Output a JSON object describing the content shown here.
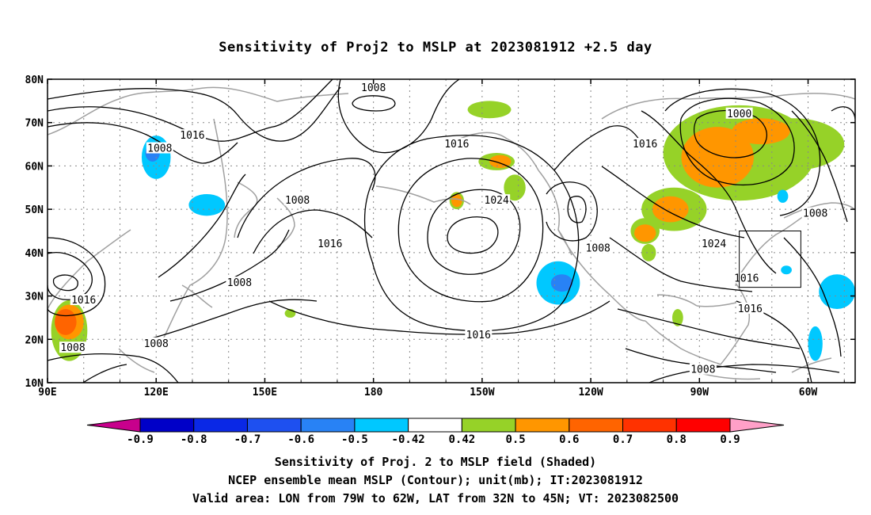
{
  "title": "Sensitivity of Proj2 to MSLP at 2023081912 +2.5 day",
  "axes": {
    "lat_labels": [
      "80N",
      "70N",
      "60N",
      "50N",
      "40N",
      "30N",
      "20N",
      "10N"
    ],
    "lon_labels": [
      "90E",
      "120E",
      "150E",
      "180",
      "150W",
      "120W",
      "90W",
      "60W"
    ]
  },
  "contour_labels": [
    {
      "text": "1008",
      "lon": 180,
      "lat": 78
    },
    {
      "text": "1016",
      "lon": 130,
      "lat": 67
    },
    {
      "text": "1008",
      "lon": 121,
      "lat": 64
    },
    {
      "text": "1016",
      "lon": -157,
      "lat": 65
    },
    {
      "text": "1000",
      "lon": -79,
      "lat": 72
    },
    {
      "text": "1016",
      "lon": -105,
      "lat": 65
    },
    {
      "text": "1008",
      "lon": 159,
      "lat": 52
    },
    {
      "text": "1024",
      "lon": -146,
      "lat": 52
    },
    {
      "text": "1016",
      "lon": 168,
      "lat": 42
    },
    {
      "text": "1008",
      "lon": -118,
      "lat": 41
    },
    {
      "text": "1024",
      "lon": -86,
      "lat": 42
    },
    {
      "text": "1008",
      "lon": -58,
      "lat": 49
    },
    {
      "text": "1008",
      "lon": 143,
      "lat": 33
    },
    {
      "text": "1016",
      "lon": -77,
      "lat": 34
    },
    {
      "text": "1016",
      "lon": -76,
      "lat": 27
    },
    {
      "text": "1016",
      "lon": 100,
      "lat": 29
    },
    {
      "text": "1016",
      "lon": -151,
      "lat": 21
    },
    {
      "text": "1008",
      "lon": 97,
      "lat": 18
    },
    {
      "text": "1008",
      "lon": 120,
      "lat": 19
    },
    {
      "text": "1008",
      "lon": -89,
      "lat": 13
    }
  ],
  "sensitivity_patches": [
    {
      "level": 0.6,
      "lon": -85,
      "lat": 62,
      "rx": 10,
      "ry": 7
    },
    {
      "level": 0.6,
      "lon": -73,
      "lat": 68,
      "rx": 8,
      "ry": 3
    },
    {
      "level": 0.5,
      "lon": -79,
      "lat": 63,
      "rx": 21,
      "ry": 11
    },
    {
      "level": 0.5,
      "lon": -64,
      "lat": 65,
      "rx": 14,
      "ry": 6
    },
    {
      "level": 0.6,
      "lon": -98,
      "lat": 50,
      "rx": 5,
      "ry": 3
    },
    {
      "level": 0.5,
      "lon": -97,
      "lat": 50,
      "rx": 9,
      "ry": 5
    },
    {
      "level": 0.6,
      "lon": -105,
      "lat": 44.5,
      "rx": 3,
      "ry": 2
    },
    {
      "level": 0.5,
      "lon": -105,
      "lat": 45,
      "rx": 4,
      "ry": 3
    },
    {
      "level": 0.5,
      "lon": -104,
      "lat": 40,
      "rx": 2,
      "ry": 2
    },
    {
      "level": 0.5,
      "lon": -148,
      "lat": 73,
      "rx": 6,
      "ry": 2
    },
    {
      "level": 0.6,
      "lon": -145,
      "lat": 61,
      "rx": 3,
      "ry": 1.5
    },
    {
      "level": 0.5,
      "lon": -146,
      "lat": 61,
      "rx": 5,
      "ry": 2
    },
    {
      "level": 0.5,
      "lon": -141,
      "lat": 55,
      "rx": 3,
      "ry": 3
    },
    {
      "level": 0.6,
      "lon": -157,
      "lat": 52,
      "rx": 1.5,
      "ry": 1.5
    },
    {
      "level": 0.5,
      "lon": -157,
      "lat": 52,
      "rx": 2,
      "ry": 2
    },
    {
      "level": 0.5,
      "lon": -96,
      "lat": 25,
      "rx": 1.5,
      "ry": 2
    },
    {
      "level": 0.7,
      "lon": 95,
      "lat": 24,
      "rx": 3,
      "ry": 3
    },
    {
      "level": 0.6,
      "lon": 96,
      "lat": 24,
      "rx": 4,
      "ry": 4
    },
    {
      "level": 0.5,
      "lon": 96,
      "lat": 22,
      "rx": 5,
      "ry": 7
    },
    {
      "level": 0.5,
      "lon": 157,
      "lat": 26,
      "rx": 1.5,
      "ry": 1
    },
    {
      "level": -0.5,
      "lon": -129,
      "lat": 33,
      "rx": 6,
      "ry": 5
    },
    {
      "level": -0.6,
      "lon": -128,
      "lat": 33,
      "rx": 3,
      "ry": 2
    },
    {
      "level": -0.5,
      "lon": 120,
      "lat": 62,
      "rx": 4,
      "ry": 5
    },
    {
      "level": -0.6,
      "lon": 119,
      "lat": 63,
      "rx": 2,
      "ry": 2
    },
    {
      "level": -0.5,
      "lon": 134,
      "lat": 51,
      "rx": 5,
      "ry": 2.5
    },
    {
      "level": -0.5,
      "lon": -52,
      "lat": 31,
      "rx": 5,
      "ry": 4
    },
    {
      "level": -0.5,
      "lon": -67,
      "lat": 53,
      "rx": 1.5,
      "ry": 1.5
    },
    {
      "level": -0.5,
      "lon": -66,
      "lat": 36,
      "rx": 1.5,
      "ry": 1
    },
    {
      "level": -0.5,
      "lon": -58,
      "lat": 19,
      "rx": 2,
      "ry": 4
    }
  ],
  "valid_area": {
    "lon_min": -79,
    "lon_max": -62,
    "lat_min": 32,
    "lat_max": 45
  },
  "colorbar": {
    "labels": [
      "-0.9",
      "-0.8",
      "-0.7",
      "-0.6",
      "-0.5",
      "-0.42",
      "0.42",
      "0.5",
      "0.6",
      "0.7",
      "0.8",
      "0.9"
    ],
    "colors": [
      "#c8008c",
      "#0000c8",
      "#0a28e6",
      "#1e50f0",
      "#2882f5",
      "#00c8ff",
      "#ffffff",
      "#96d228",
      "#ff9600",
      "#ff6400",
      "#ff3200",
      "#ff0000",
      "#ffa0c8"
    ]
  },
  "captions": {
    "line1": "Sensitivity of Proj. 2 to MSLP field (Shaded)",
    "line2": "NCEP ensemble mean MSLP (Contour); unit(mb); IT:2023081912",
    "line3": "Valid area: LON from 79W to 62W, LAT from 32N to 45N; VT: 2023082500"
  }
}
